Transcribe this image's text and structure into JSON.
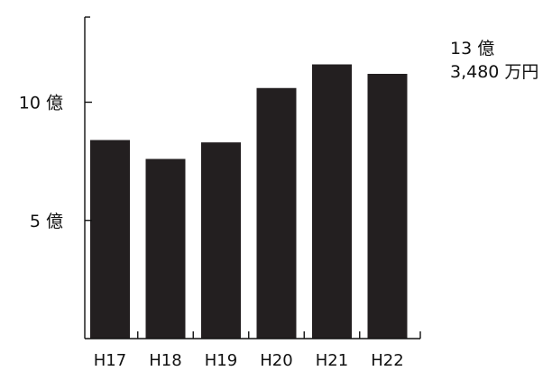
{
  "chart_data": {
    "type": "bar",
    "categories": [
      "H17",
      "H18",
      "H19",
      "H20",
      "H21",
      "H22"
    ],
    "values": [
      8.4,
      7.6,
      8.3,
      10.6,
      11.6,
      11.2
    ],
    "ylim": [
      0,
      13.6
    ],
    "y_ticks": [
      {
        "value": 5,
        "label": "5 億"
      },
      {
        "value": 10,
        "label": "10 億"
      }
    ],
    "annotation": [
      "13 億",
      "3,480 万円"
    ],
    "bar_color": "#231f20",
    "axis_color": "#111111",
    "grid": false
  }
}
